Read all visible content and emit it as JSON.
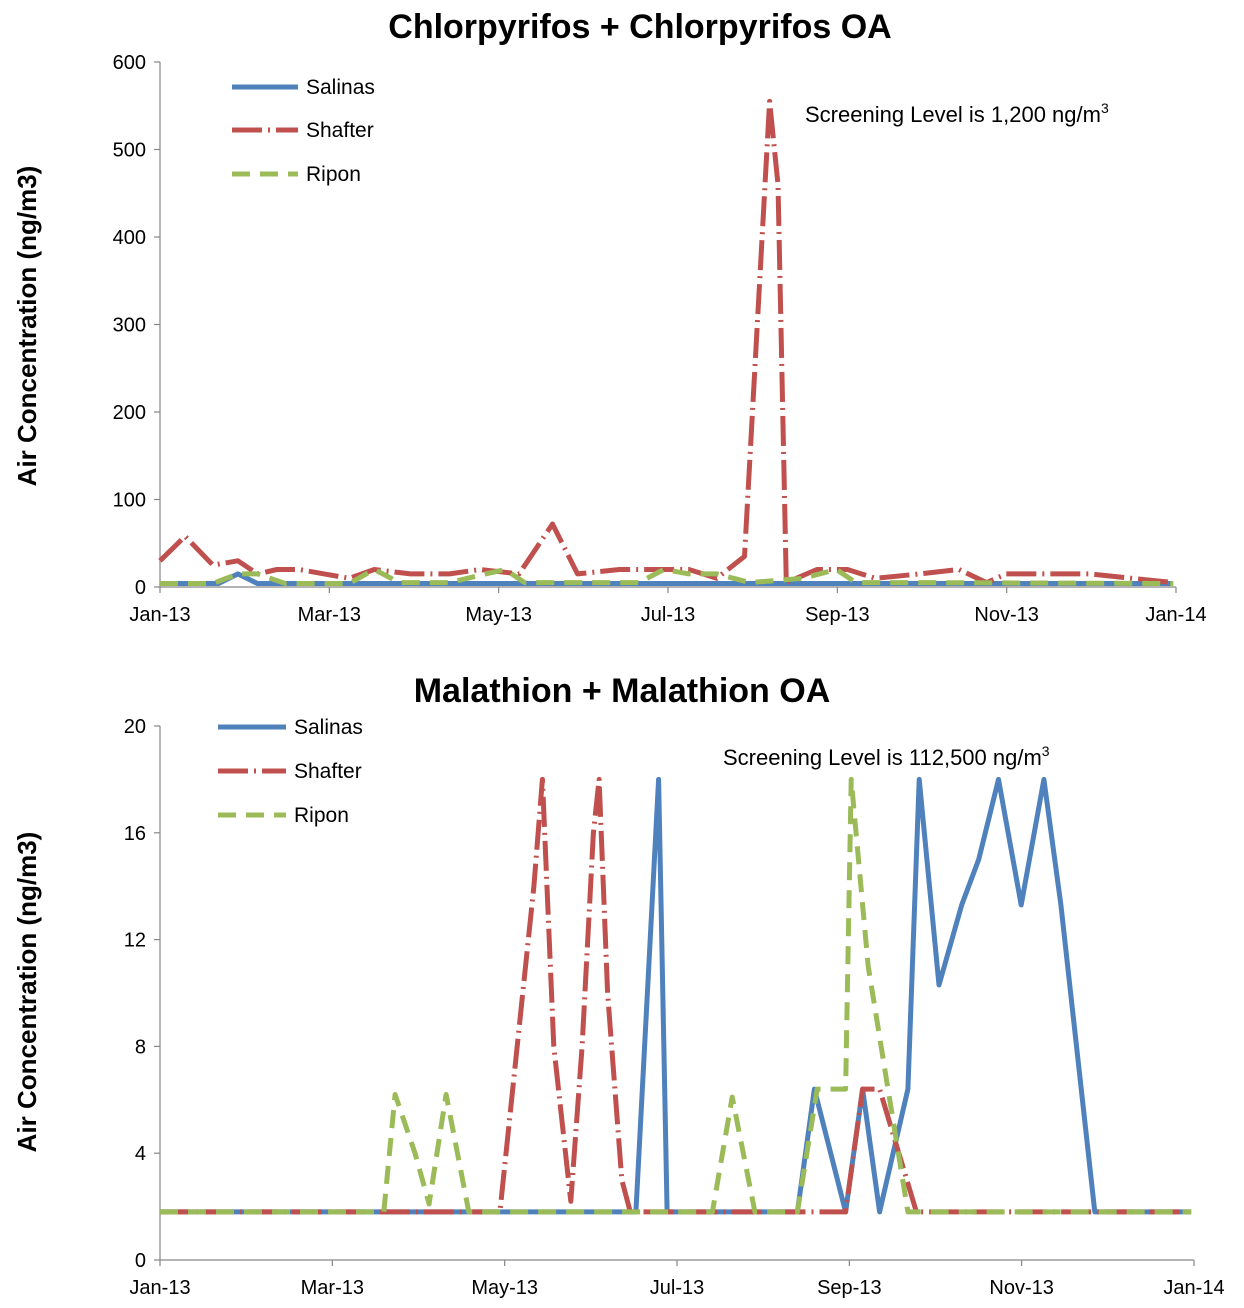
{
  "chart_data": [
    {
      "type": "line",
      "title": "Chlorpyrifos + Chlorpyrifos OA",
      "ylabel": "Air Concentration (ng/m3)",
      "xlabel": "",
      "ylim": [
        0,
        600
      ],
      "yticks": [
        "0",
        "100",
        "200",
        "300",
        "400",
        "500",
        "600"
      ],
      "xlim": [
        "2013-01-01",
        "2014-01-01"
      ],
      "xticks": [
        "Jan-13",
        "Mar-13",
        "May-13",
        "Jul-13",
        "Sep-13",
        "Nov-13",
        "Jan-14"
      ],
      "annotation": {
        "text": "Screening Level is 1,200 ng/m",
        "sup": "3"
      },
      "legend_position": "top-left",
      "grid": false,
      "series": [
        {
          "name": "Salinas",
          "color": "#4F81BD",
          "style": "solid",
          "points": [
            [
              "2013-01-01",
              4
            ],
            [
              "2013-01-08",
              4
            ],
            [
              "2013-01-15",
              4
            ],
            [
              "2013-01-22",
              4
            ],
            [
              "2013-01-29",
              15
            ],
            [
              "2013-02-05",
              4
            ],
            [
              "2013-03-01",
              4
            ],
            [
              "2013-04-01",
              4
            ],
            [
              "2013-05-01",
              4
            ],
            [
              "2013-06-01",
              4
            ],
            [
              "2013-07-01",
              4
            ],
            [
              "2013-08-01",
              4
            ],
            [
              "2013-09-01",
              4
            ],
            [
              "2013-10-01",
              4
            ],
            [
              "2013-11-01",
              4
            ],
            [
              "2013-12-01",
              4
            ],
            [
              "2013-12-31",
              4
            ]
          ]
        },
        {
          "name": "Shafter",
          "color": "#C0504D",
          "style": "dash-dot",
          "points": [
            [
              "2013-01-01",
              30
            ],
            [
              "2013-01-10",
              58
            ],
            [
              "2013-01-20",
              25
            ],
            [
              "2013-01-29",
              30
            ],
            [
              "2013-02-05",
              15
            ],
            [
              "2013-02-12",
              20
            ],
            [
              "2013-02-20",
              20
            ],
            [
              "2013-03-01",
              15
            ],
            [
              "2013-03-10",
              10
            ],
            [
              "2013-03-19",
              20
            ],
            [
              "2013-04-01",
              15
            ],
            [
              "2013-04-15",
              15
            ],
            [
              "2013-04-26",
              20
            ],
            [
              "2013-05-10",
              15
            ],
            [
              "2013-05-22",
              72
            ],
            [
              "2013-05-31",
              15
            ],
            [
              "2013-06-15",
              20
            ],
            [
              "2013-06-30",
              20
            ],
            [
              "2013-07-10",
              20
            ],
            [
              "2013-07-20",
              10
            ],
            [
              "2013-07-30",
              35
            ],
            [
              "2013-08-08",
              555
            ],
            [
              "2013-08-11",
              460
            ],
            [
              "2013-08-14",
              5
            ],
            [
              "2013-08-25",
              20
            ],
            [
              "2013-09-05",
              20
            ],
            [
              "2013-09-15",
              10
            ],
            [
              "2013-10-01",
              15
            ],
            [
              "2013-10-15",
              20
            ],
            [
              "2013-10-25",
              5
            ],
            [
              "2013-11-01",
              15
            ],
            [
              "2013-12-01",
              15
            ],
            [
              "2013-12-31",
              5
            ]
          ]
        },
        {
          "name": "Ripon",
          "color": "#9BBB59",
          "style": "dash",
          "points": [
            [
              "2013-01-01",
              4
            ],
            [
              "2013-01-20",
              4
            ],
            [
              "2013-01-29",
              15
            ],
            [
              "2013-02-05",
              15
            ],
            [
              "2013-02-15",
              4
            ],
            [
              "2013-03-10",
              4
            ],
            [
              "2013-03-19",
              20
            ],
            [
              "2013-03-28",
              5
            ],
            [
              "2013-04-15",
              5
            ],
            [
              "2013-04-28",
              15
            ],
            [
              "2013-05-05",
              20
            ],
            [
              "2013-05-12",
              5
            ],
            [
              "2013-06-10",
              5
            ],
            [
              "2013-06-22",
              5
            ],
            [
              "2013-07-01",
              20
            ],
            [
              "2013-07-10",
              15
            ],
            [
              "2013-07-20",
              15
            ],
            [
              "2013-08-01",
              5
            ],
            [
              "2013-08-20",
              10
            ],
            [
              "2013-09-01",
              20
            ],
            [
              "2013-09-08",
              5
            ],
            [
              "2013-10-01",
              5
            ],
            [
              "2013-12-31",
              4
            ]
          ]
        }
      ]
    },
    {
      "type": "line",
      "title": "Malathion + Malathion OA",
      "ylabel": "Air Concentration (ng/m3)",
      "xlabel": "",
      "ylim": [
        0,
        20
      ],
      "yticks": [
        "0",
        "4",
        "8",
        "12",
        "16",
        "20"
      ],
      "xlim": [
        "2013-01-01",
        "2014-01-01"
      ],
      "xticks": [
        "Jan-13",
        "Mar-13",
        "May-13",
        "Jul-13",
        "Sep-13",
        "Nov-13",
        "Jan-14"
      ],
      "annotation": {
        "text": "Screening Level is 112,500 ng/m",
        "sup": "3"
      },
      "legend_position": "top-left",
      "grid": false,
      "series": [
        {
          "name": "Salinas",
          "color": "#4F81BD",
          "style": "solid",
          "points": [
            [
              "2013-01-01",
              1.8
            ],
            [
              "2013-06-18",
              1.8
            ],
            [
              "2013-06-26",
              18
            ],
            [
              "2013-06-29",
              1.8
            ],
            [
              "2013-08-14",
              1.8
            ],
            [
              "2013-08-20",
              6.4
            ],
            [
              "2013-08-31",
              1.8
            ],
            [
              "2013-09-06",
              6.4
            ],
            [
              "2013-09-12",
              1.8
            ],
            [
              "2013-09-22",
              6.4
            ],
            [
              "2013-09-26",
              18
            ],
            [
              "2013-10-03",
              10.3
            ],
            [
              "2013-10-11",
              13.3
            ],
            [
              "2013-10-17",
              15
            ],
            [
              "2013-10-24",
              18
            ],
            [
              "2013-11-01",
              13.3
            ],
            [
              "2013-11-09",
              18
            ],
            [
              "2013-11-15",
              13.3
            ],
            [
              "2013-11-27",
              1.8
            ],
            [
              "2013-12-31",
              1.8
            ]
          ]
        },
        {
          "name": "Shafter",
          "color": "#C0504D",
          "style": "dash-dot",
          "points": [
            [
              "2013-01-01",
              1.8
            ],
            [
              "2013-05-01",
              1.8
            ],
            [
              "2013-05-13",
              14
            ],
            [
              "2013-05-16",
              18
            ],
            [
              "2013-05-20",
              8
            ],
            [
              "2013-05-26",
              2.2
            ],
            [
              "2013-05-30",
              8
            ],
            [
              "2013-06-03",
              16
            ],
            [
              "2013-06-05",
              18
            ],
            [
              "2013-06-08",
              10
            ],
            [
              "2013-06-13",
              3
            ],
            [
              "2013-06-16",
              1.8
            ],
            [
              "2013-08-31",
              1.8
            ],
            [
              "2013-09-06",
              6.4
            ],
            [
              "2013-09-12",
              6.4
            ],
            [
              "2013-09-25",
              1.8
            ],
            [
              "2013-12-31",
              1.8
            ]
          ]
        },
        {
          "name": "Ripon",
          "color": "#9BBB59",
          "style": "dash",
          "points": [
            [
              "2013-01-01",
              1.8
            ],
            [
              "2013-03-21",
              1.8
            ],
            [
              "2013-03-25",
              6.2
            ],
            [
              "2013-04-01",
              4
            ],
            [
              "2013-04-06",
              2.1
            ],
            [
              "2013-04-12",
              6.2
            ],
            [
              "2013-04-20",
              1.8
            ],
            [
              "2013-07-15",
              1.8
            ],
            [
              "2013-07-22",
              6.1
            ],
            [
              "2013-07-30",
              1.8
            ],
            [
              "2013-08-14",
              1.8
            ],
            [
              "2013-08-21",
              6.4
            ],
            [
              "2013-08-31",
              6.4
            ],
            [
              "2013-09-02",
              18
            ],
            [
              "2013-09-08",
              11
            ],
            [
              "2013-09-15",
              6.4
            ],
            [
              "2013-09-22",
              1.8
            ],
            [
              "2013-12-31",
              1.8
            ]
          ]
        }
      ]
    }
  ]
}
